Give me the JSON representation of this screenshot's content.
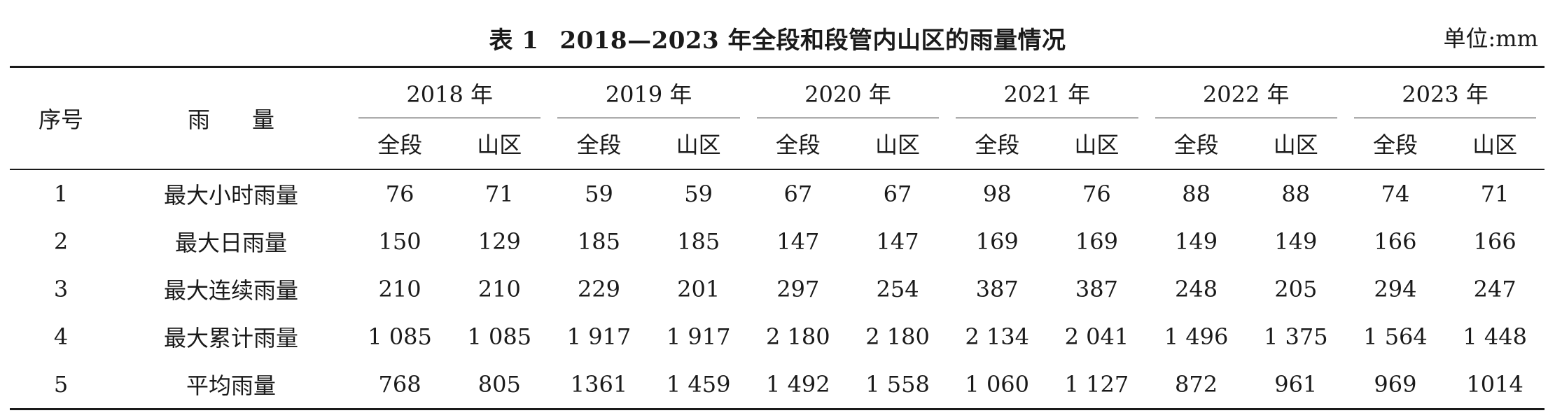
{
  "caption": {
    "table_no": "表 1",
    "title": "2018—2023 年全段和段管内山区的雨量情况",
    "unit": "单位:mm"
  },
  "header": {
    "index_label": "序号",
    "name_label": "雨量",
    "years": [
      "2018 年",
      "2019 年",
      "2020 年",
      "2021 年",
      "2022 年",
      "2023 年"
    ],
    "sub_labels": [
      "全段",
      "山区"
    ]
  },
  "rows": [
    {
      "index": "1",
      "name": "最大小时雨量",
      "values": [
        "76",
        "71",
        "59",
        "59",
        "67",
        "67",
        "98",
        "76",
        "88",
        "88",
        "74",
        "71"
      ]
    },
    {
      "index": "2",
      "name": "最大日雨量",
      "values": [
        "150",
        "129",
        "185",
        "185",
        "147",
        "147",
        "169",
        "169",
        "149",
        "149",
        "166",
        "166"
      ]
    },
    {
      "index": "3",
      "name": "最大连续雨量",
      "values": [
        "210",
        "210",
        "229",
        "201",
        "297",
        "254",
        "387",
        "387",
        "248",
        "205",
        "294",
        "247"
      ]
    },
    {
      "index": "4",
      "name": "最大累计雨量",
      "values": [
        "1 085",
        "1 085",
        "1 917",
        "1 917",
        "2 180",
        "2 180",
        "2 134",
        "2 041",
        "1 496",
        "1 375",
        "1 564",
        "1 448"
      ]
    },
    {
      "index": "5",
      "name": "平均雨量",
      "values": [
        "768",
        "805",
        "1361",
        "1 459",
        "1 492",
        "1 558",
        "1 060",
        "1 127",
        "872",
        "961",
        "969",
        "1014"
      ]
    }
  ]
}
